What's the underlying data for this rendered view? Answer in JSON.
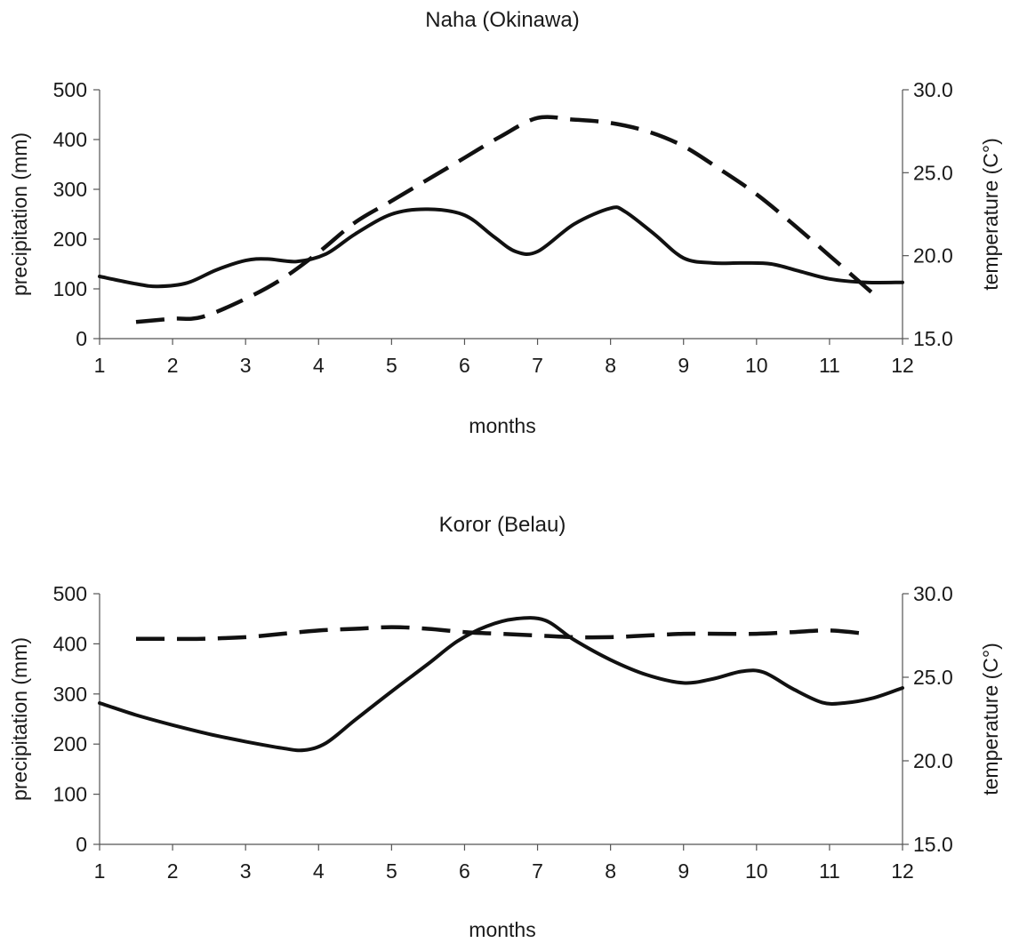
{
  "chart_data": [
    {
      "type": "line",
      "title": "Naha (Okinawa)",
      "xlabel": "months",
      "ylabel_left": "precipitation (mm)",
      "ylabel_right": "temperature (C°)",
      "x_ticks": [
        "1",
        "2",
        "3",
        "4",
        "5",
        "6",
        "7",
        "8",
        "9",
        "10",
        "11",
        "12"
      ],
      "y_left_ticks": [
        "0",
        "100",
        "200",
        "300",
        "400",
        "500"
      ],
      "y_right_ticks": [
        "15.0",
        "20.0",
        "25.0",
        "30.0"
      ],
      "xlim": [
        1,
        12
      ],
      "ylim_left": [
        0,
        500
      ],
      "ylim_right": [
        15,
        30
      ],
      "grid": false,
      "series": [
        {
          "axis": "left",
          "style": "solid",
          "x": [
            1,
            1.5,
            1.8,
            2.2,
            2.6,
            3.0,
            3.3,
            3.7,
            4.1,
            4.5,
            5.0,
            5.5,
            6.0,
            6.4,
            6.7,
            7.0,
            7.5,
            8.0,
            8.2,
            8.6,
            9.0,
            9.4,
            9.8,
            10.2,
            10.6,
            11.0,
            11.5,
            12.0
          ],
          "y": [
            125,
            110,
            105,
            112,
            138,
            157,
            160,
            155,
            170,
            210,
            250,
            260,
            248,
            205,
            175,
            175,
            230,
            262,
            255,
            210,
            162,
            152,
            152,
            150,
            135,
            120,
            113,
            113
          ]
        },
        {
          "axis": "right",
          "style": "dashed",
          "x": [
            1.5,
            2.0,
            2.4,
            3.0,
            3.5,
            4.0,
            4.5,
            5.0,
            5.5,
            6.0,
            6.5,
            7.0,
            7.5,
            8.0,
            8.5,
            9.0,
            9.5,
            10.0,
            10.5,
            11.0,
            11.6
          ],
          "y": [
            16.0,
            16.2,
            16.3,
            17.4,
            18.6,
            20.2,
            22.0,
            23.3,
            24.6,
            25.9,
            27.2,
            28.3,
            28.2,
            28.0,
            27.5,
            26.6,
            25.2,
            23.7,
            21.9,
            20.0,
            17.7
          ]
        }
      ]
    },
    {
      "type": "line",
      "title": "Koror (Belau)",
      "xlabel": "months",
      "ylabel_left": "precipitation (mm)",
      "ylabel_right": "temperature (C°)",
      "x_ticks": [
        "1",
        "2",
        "3",
        "4",
        "5",
        "6",
        "7",
        "8",
        "9",
        "10",
        "11",
        "12"
      ],
      "y_left_ticks": [
        "0",
        "100",
        "200",
        "300",
        "400",
        "500"
      ],
      "y_right_ticks": [
        "15.0",
        "20.0",
        "25.0",
        "30.0"
      ],
      "xlim": [
        1,
        12
      ],
      "ylim_left": [
        0,
        500
      ],
      "ylim_right": [
        15,
        30
      ],
      "grid": false,
      "series": [
        {
          "axis": "left",
          "style": "solid",
          "x": [
            1,
            1.5,
            2.0,
            2.5,
            3.0,
            3.5,
            3.8,
            4.1,
            4.5,
            5.0,
            5.5,
            5.9,
            6.3,
            6.7,
            7.1,
            7.5,
            8.0,
            8.5,
            9.0,
            9.4,
            9.8,
            10.1,
            10.5,
            10.9,
            11.2,
            11.6,
            12.0
          ],
          "y": [
            282,
            258,
            238,
            220,
            205,
            192,
            188,
            202,
            248,
            305,
            360,
            405,
            435,
            450,
            447,
            408,
            368,
            338,
            322,
            330,
            345,
            343,
            310,
            283,
            282,
            292,
            312
          ]
        },
        {
          "axis": "right",
          "style": "dashed",
          "x": [
            1.5,
            2.0,
            2.4,
            3.0,
            3.5,
            4.0,
            4.5,
            5.0,
            5.5,
            6.0,
            6.5,
            7.0,
            7.5,
            8.0,
            8.5,
            9.0,
            9.5,
            10.0,
            10.5,
            11.0,
            11.5
          ],
          "y": [
            27.3,
            27.3,
            27.3,
            27.4,
            27.6,
            27.8,
            27.9,
            28.0,
            27.9,
            27.7,
            27.6,
            27.5,
            27.4,
            27.4,
            27.5,
            27.6,
            27.6,
            27.6,
            27.7,
            27.8,
            27.6
          ]
        }
      ]
    }
  ]
}
